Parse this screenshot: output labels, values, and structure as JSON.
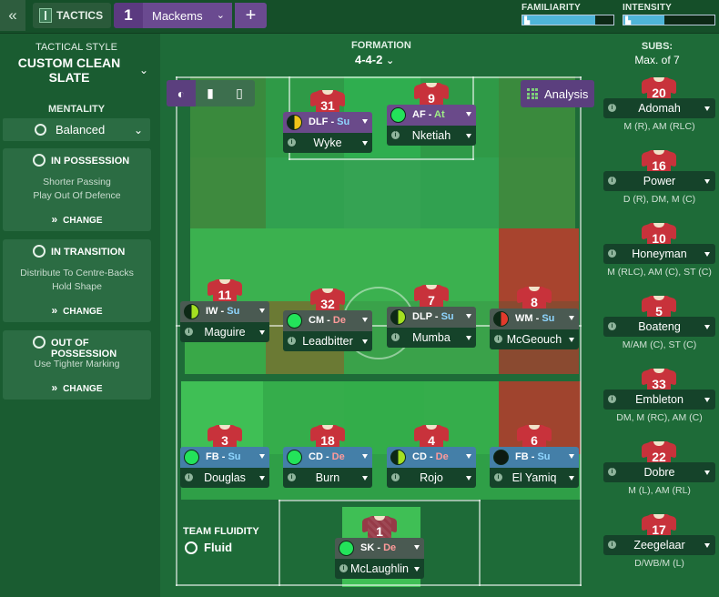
{
  "topbar": {
    "back_icon": "double-chevron-left-icon",
    "tactics_label": "TACTICS",
    "slot_number": "1",
    "tactic_name": "Mackems",
    "add_label": "+",
    "familiarity": {
      "label": "FAMILIARITY",
      "level": 0.8
    },
    "intensity": {
      "label": "INTENSITY",
      "level": 0.45
    }
  },
  "left_panel": {
    "style_title": "TACTICAL STYLE",
    "style_name": "CUSTOM CLEAN SLATE",
    "mentality_label": "MENTALITY",
    "mentality_value": "Balanced",
    "in_possession": {
      "title": "IN POSSESSION",
      "lines": [
        "Shorter Passing",
        "Play Out Of Defence"
      ],
      "change": "CHANGE"
    },
    "in_transition": {
      "title": "IN TRANSITION",
      "lines": [
        "Distribute To Centre-Backs",
        "Hold Shape"
      ],
      "change": "CHANGE"
    },
    "out_of_possession": {
      "title": "OUT OF POSSESSION",
      "lines": [
        "Use Tighter Marking"
      ],
      "change": "CHANGE"
    }
  },
  "pitch": {
    "formation_label": "FORMATION",
    "formation_value": "4-4-2",
    "analysis_label": "Analysis",
    "fluidity_label": "TEAM FLUIDITY",
    "fluidity_value": "Fluid",
    "players": [
      {
        "number": "31",
        "role": "DLF",
        "duty": "Su",
        "name": "Wyke",
        "condition": "yellow-black"
      },
      {
        "number": "9",
        "role": "AF",
        "duty": "At",
        "name": "Nketiah",
        "condition": "green"
      },
      {
        "number": "11",
        "role": "IW",
        "duty": "Su",
        "name": "Maguire",
        "condition": "lime"
      },
      {
        "number": "32",
        "role": "CM",
        "duty": "De",
        "name": "Leadbitter",
        "condition": "green"
      },
      {
        "number": "7",
        "role": "DLP",
        "duty": "Su",
        "name": "Mumba",
        "condition": "lime"
      },
      {
        "number": "8",
        "role": "WM",
        "duty": "Su",
        "name": "McGeouch",
        "condition": "red-black"
      },
      {
        "number": "3",
        "role": "FB",
        "duty": "Su",
        "name": "Douglas",
        "condition": "green"
      },
      {
        "number": "18",
        "role": "CD",
        "duty": "De",
        "name": "Burn",
        "condition": "green"
      },
      {
        "number": "4",
        "role": "CD",
        "duty": "De",
        "name": "Rojo",
        "condition": "lime"
      },
      {
        "number": "6",
        "role": "FB",
        "duty": "Su",
        "name": "El Yamiq",
        "condition": "black"
      },
      {
        "number": "1",
        "role": "SK",
        "duty": "De",
        "name": "McLaughlin",
        "condition": "green"
      }
    ]
  },
  "subs": {
    "title": "SUBS:",
    "max": "Max. of 7",
    "players": [
      {
        "number": "20",
        "name": "Adomah",
        "positions": "M (R), AM (RLC)"
      },
      {
        "number": "16",
        "name": "Power",
        "positions": "D (R), DM, M (C)"
      },
      {
        "number": "10",
        "name": "Honeyman",
        "positions": "M (RLC), AM (C), ST (C)"
      },
      {
        "number": "5",
        "name": "Boateng",
        "positions": "M/AM (C), ST (C)"
      },
      {
        "number": "33",
        "name": "Embleton",
        "positions": "DM, M (RC), AM (C)"
      },
      {
        "number": "22",
        "name": "Dobre",
        "positions": "M (L), AM (RL)"
      },
      {
        "number": "17",
        "name": "Zeegelaar",
        "positions": "D/WB/M (L)"
      }
    ]
  },
  "colors": {
    "purple": "#5b3f7e",
    "pitch": "#2a8a45",
    "danger_zone": "#a03a2e"
  }
}
